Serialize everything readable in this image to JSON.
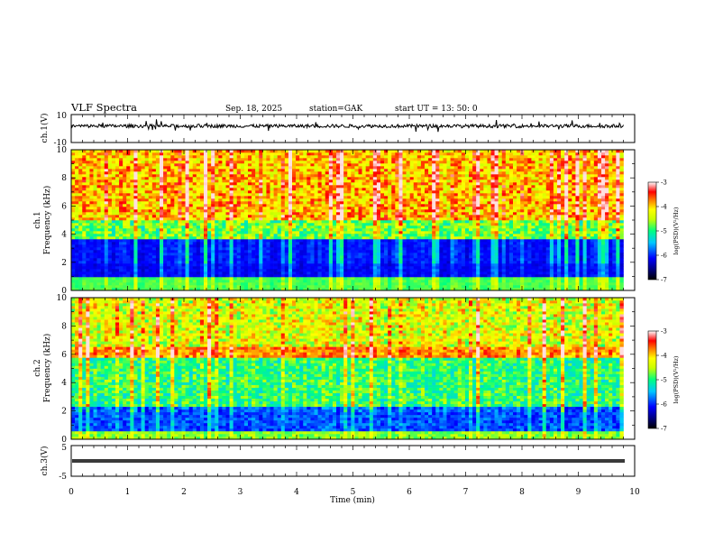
{
  "header": {
    "title": "VLF  Spectra",
    "date": "Sep. 18, 2025",
    "station": "station=GAK",
    "start": "start  UT  =   13: 50: 0"
  },
  "chart_data": {
    "type": "heatmap",
    "x_axis": {
      "label": "Time  (min)",
      "range": [
        0,
        10
      ],
      "ticks": [
        "0",
        "1",
        "2",
        "3",
        "4",
        "5",
        "6",
        "7",
        "8",
        "9",
        "10"
      ],
      "data_end_min": 9.8
    },
    "panels": [
      {
        "name": "ch1-waveform",
        "kind": "line",
        "ylabel": "ch.1(V)",
        "ylim": [
          -10,
          10
        ],
        "yticks": [
          "10",
          "-10"
        ]
      },
      {
        "name": "ch1-spectrogram",
        "kind": "heatmap",
        "ylabel_top": "ch.1",
        "ylabel": "Frequency  (kHz)",
        "ylim": [
          0,
          10
        ],
        "yticks": [
          "0",
          "2",
          "4",
          "6",
          "8",
          "10"
        ],
        "colorbar": {
          "label": "log(PSD)(V²/Hz)",
          "range": [
            -7,
            -3
          ],
          "ticks": [
            "-3",
            "-4",
            "-5",
            "-6",
            "-7"
          ]
        }
      },
      {
        "name": "ch2-spectrogram",
        "kind": "heatmap",
        "ylabel_top": "ch.2",
        "ylabel": "Frequency  (kHz)",
        "ylim": [
          0,
          10
        ],
        "yticks": [
          "0",
          "2",
          "4",
          "6",
          "8",
          "10"
        ],
        "colorbar": {
          "label": "log(PSD)(V²/Hz)",
          "range": [
            -7,
            -3
          ],
          "ticks": [
            "-3",
            "-4",
            "-5",
            "-6",
            "-7"
          ]
        }
      },
      {
        "name": "ch3-waveform",
        "kind": "line",
        "ylabel": "ch.3(V)",
        "ylim": [
          -5,
          5
        ],
        "yticks": [
          "5",
          "-5"
        ]
      }
    ]
  }
}
